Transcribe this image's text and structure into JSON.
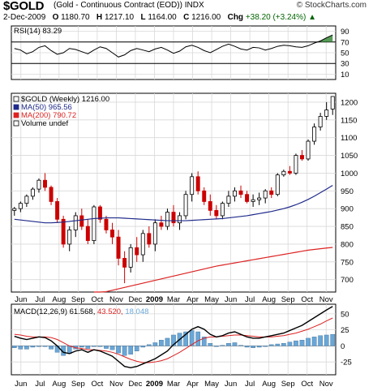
{
  "header": {
    "ticker": "$GOLD",
    "description": "(Gold - Continuous Contract (EOD))  INDX",
    "watermark": "© StockCharts.com"
  },
  "quote": {
    "date": "2-Dec-2009",
    "open_label": "O",
    "open": "1180.70",
    "high_label": "H",
    "high": "1217.10",
    "low_label": "L",
    "low": "1164.00",
    "close_label": "C",
    "close": "1216.00",
    "change_label": "Chg",
    "change": "+38.20 (+3.24%)",
    "change_arrow": "▲"
  },
  "colors": {
    "up": "#000000",
    "down": "#cc0000",
    "ma50": "#1f2a8a",
    "ma200": "#dd2222",
    "hist": "#6aa6d6",
    "rsi_fill": "#3a8a3a"
  },
  "chart_data": [
    {
      "type": "line",
      "title": "RSI(14) 83.29",
      "legend": [
        "RSI(14) 83.29"
      ],
      "y_ticks": [
        10,
        30,
        50,
        70,
        90
      ],
      "ylim": [
        0,
        100
      ],
      "reference_lines": [
        30,
        70
      ],
      "values": [
        58,
        55,
        48,
        52,
        60,
        63,
        54,
        47,
        50,
        58,
        56,
        52,
        48,
        55,
        61,
        58,
        50,
        42,
        46,
        54,
        58,
        55,
        52,
        57,
        60,
        55,
        49,
        53,
        61,
        64,
        60,
        54,
        50,
        56,
        62,
        66,
        62,
        57,
        55,
        60,
        59,
        55,
        58,
        62,
        64,
        63,
        61,
        60,
        63,
        68,
        72,
        78,
        83.29
      ]
    },
    {
      "type": "candlestick",
      "title": "$GOLD (Weekly) 1216.00",
      "legend": [
        "$GOLD (Weekly) 1216.00",
        "MA(50) 965.56",
        "MA(200) 790.72",
        "Volume undef"
      ],
      "y_ticks": [
        700,
        750,
        800,
        850,
        900,
        950,
        1000,
        1050,
        1100,
        1150,
        1200
      ],
      "ylim": [
        665,
        1225
      ],
      "x_labels": [
        "Jun",
        "Jul",
        "Aug",
        "Sep",
        "Oct",
        "Nov",
        "Dec",
        "2009",
        "Mar",
        "Apr",
        "May",
        "Jun",
        "Jul",
        "Aug",
        "Sep",
        "Oct",
        "Nov"
      ],
      "ohlc": [
        [
          895,
          905,
          880,
          900
        ],
        [
          900,
          920,
          890,
          915
        ],
        [
          915,
          940,
          905,
          935
        ],
        [
          935,
          960,
          925,
          955
        ],
        [
          955,
          985,
          945,
          980
        ],
        [
          980,
          1000,
          950,
          960
        ],
        [
          960,
          965,
          910,
          920
        ],
        [
          920,
          930,
          860,
          870
        ],
        [
          870,
          880,
          790,
          800
        ],
        [
          800,
          850,
          780,
          840
        ],
        [
          840,
          890,
          820,
          880
        ],
        [
          880,
          900,
          840,
          850
        ],
        [
          850,
          870,
          800,
          810
        ],
        [
          810,
          910,
          800,
          905
        ],
        [
          905,
          910,
          860,
          870
        ],
        [
          870,
          880,
          830,
          840
        ],
        [
          840,
          860,
          800,
          820
        ],
        [
          820,
          840,
          740,
          760
        ],
        [
          760,
          780,
          690,
          735
        ],
        [
          735,
          800,
          720,
          790
        ],
        [
          790,
          820,
          750,
          770
        ],
        [
          770,
          840,
          750,
          830
        ],
        [
          830,
          850,
          790,
          800
        ],
        [
          800,
          870,
          780,
          860
        ],
        [
          860,
          880,
          840,
          850
        ],
        [
          850,
          900,
          840,
          890
        ],
        [
          890,
          910,
          850,
          860
        ],
        [
          860,
          890,
          840,
          880
        ],
        [
          880,
          950,
          870,
          940
        ],
        [
          940,
          1000,
          920,
          990
        ],
        [
          990,
          1005,
          940,
          950
        ],
        [
          950,
          960,
          910,
          920
        ],
        [
          920,
          940,
          880,
          895
        ],
        [
          895,
          910,
          870,
          880
        ],
        [
          880,
          920,
          870,
          915
        ],
        [
          915,
          950,
          905,
          935
        ],
        [
          935,
          960,
          920,
          950
        ],
        [
          950,
          965,
          930,
          940
        ],
        [
          940,
          950,
          915,
          920
        ],
        [
          920,
          940,
          905,
          925
        ],
        [
          925,
          945,
          910,
          930
        ],
        [
          930,
          955,
          915,
          950
        ],
        [
          950,
          960,
          930,
          940
        ],
        [
          940,
          1000,
          935,
          995
        ],
        [
          995,
          1010,
          990,
          1005
        ],
        [
          1005,
          1020,
          995,
          1000
        ],
        [
          1000,
          1055,
          995,
          1050
        ],
        [
          1050,
          1065,
          1035,
          1040
        ],
        [
          1040,
          1095,
          1035,
          1090
        ],
        [
          1090,
          1140,
          1080,
          1130
        ],
        [
          1130,
          1170,
          1120,
          1160
        ],
        [
          1160,
          1200,
          1150,
          1178
        ],
        [
          1180.7,
          1217.1,
          1164,
          1216
        ]
      ],
      "ma50": [
        870,
        868,
        866,
        864,
        862,
        860,
        860,
        861,
        862,
        864,
        866,
        868,
        870,
        872,
        873,
        874,
        874,
        874,
        873,
        872,
        871,
        870,
        869,
        868,
        867,
        866,
        866,
        866,
        866,
        867,
        868,
        869,
        870,
        871,
        872,
        874,
        876,
        878,
        880,
        883,
        886,
        889,
        892,
        896,
        900,
        905,
        911,
        918,
        926,
        935,
        945,
        955,
        965.56
      ],
      "ma200_start_index": 13,
      "ma200": [
        658,
        662,
        666,
        670,
        674,
        678,
        682,
        686,
        690,
        694,
        698,
        702,
        706,
        710,
        714,
        718,
        722,
        726,
        730,
        734,
        738,
        741,
        744,
        747,
        750,
        753,
        756,
        759,
        762,
        765,
        768,
        771,
        774,
        777,
        780,
        783,
        785,
        787,
        789,
        790.72
      ]
    },
    {
      "type": "line",
      "title": "MACD(12,26,9) 61.568, 43.520, 18.048",
      "legend": [
        "MACD(12,26,9)",
        "61.568",
        "43.520",
        "18.048"
      ],
      "y_ticks": [
        -25,
        0,
        25,
        50
      ],
      "ylim": [
        -45,
        65
      ],
      "x_labels": [
        "Jun",
        "Jul",
        "Aug",
        "Sep",
        "Oct",
        "Nov",
        "Dec",
        "2009",
        "Mar",
        "Apr",
        "May",
        "Jun",
        "Jul",
        "Aug",
        "Sep",
        "Oct",
        "Nov"
      ],
      "macd": [
        15,
        12,
        10,
        12,
        14,
        13,
        8,
        0,
        -10,
        -12,
        -8,
        -6,
        -10,
        -6,
        -8,
        -12,
        -16,
        -24,
        -32,
        -34,
        -32,
        -28,
        -24,
        -20,
        -14,
        -8,
        2,
        10,
        18,
        26,
        30,
        26,
        18,
        14,
        16,
        20,
        22,
        18,
        14,
        12,
        12,
        14,
        16,
        18,
        20,
        24,
        28,
        32,
        38,
        44,
        50,
        56,
        61.568
      ],
      "signal": [
        18,
        17,
        15,
        14,
        14,
        14,
        13,
        10,
        5,
        0,
        -3,
        -4,
        -6,
        -6,
        -7,
        -8,
        -10,
        -13,
        -17,
        -21,
        -24,
        -26,
        -26,
        -25,
        -23,
        -20,
        -15,
        -10,
        -4,
        2,
        8,
        12,
        14,
        14,
        15,
        16,
        17,
        17,
        16,
        15,
        14,
        14,
        14,
        15,
        16,
        18,
        20,
        23,
        26,
        30,
        34,
        39,
        43.52
      ],
      "histogram": [
        -3,
        -5,
        -5,
        -2,
        0,
        -1,
        -5,
        -10,
        -15,
        -12,
        -5,
        -2,
        -4,
        0,
        -1,
        -4,
        -6,
        -11,
        -15,
        -13,
        -8,
        -2,
        2,
        5,
        9,
        12,
        17,
        20,
        22,
        24,
        22,
        14,
        4,
        0,
        1,
        4,
        5,
        1,
        -2,
        -3,
        -2,
        0,
        2,
        3,
        4,
        6,
        8,
        9,
        12,
        14,
        16,
        17,
        18.048
      ]
    }
  ]
}
